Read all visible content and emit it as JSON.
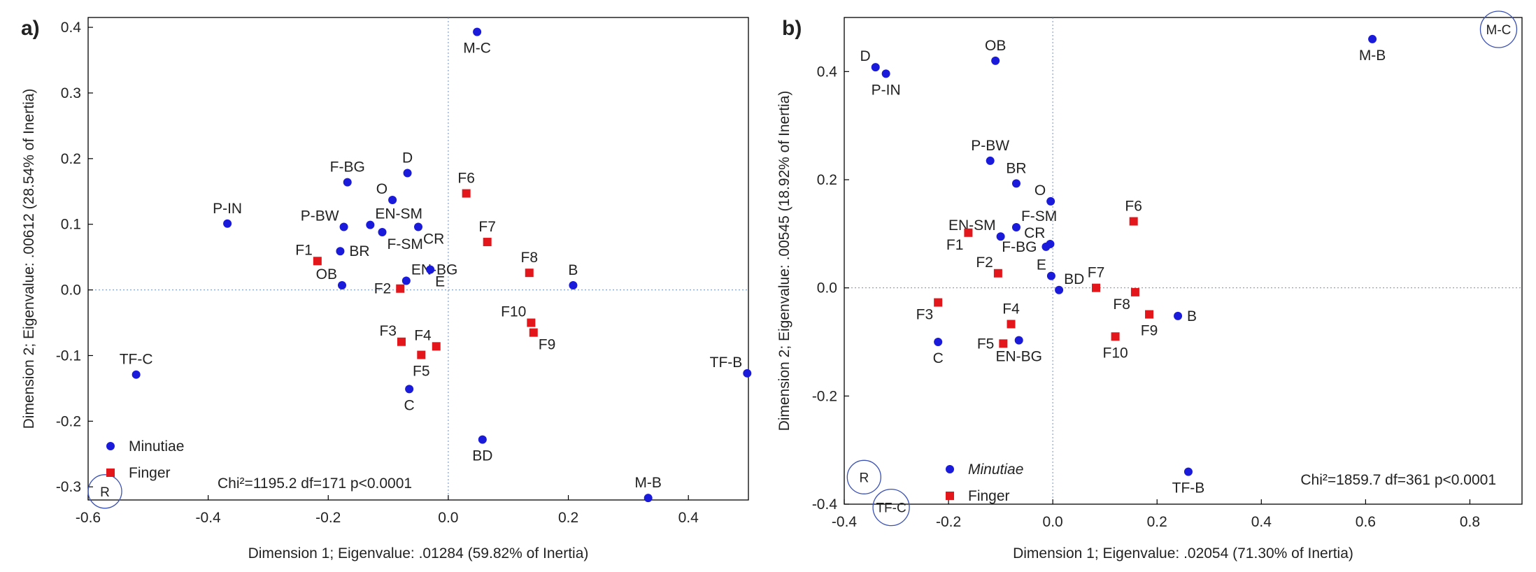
{
  "chart_data": [
    {
      "type": "scatter",
      "panel": "a)",
      "xlabel": "Dimension 1; Eigenvalue: .01284 (59.82% of Inertia)",
      "ylabel": "Dimension 2; Eigenvalue: .00612 (28.54% of Inertia)",
      "xlim": [
        -0.6,
        0.5
      ],
      "ylim": [
        -0.32,
        0.415
      ],
      "xticks": [
        -0.6,
        -0.4,
        -0.2,
        0.0,
        0.2,
        0.4
      ],
      "xtick_labels": [
        "-0.6",
        "-0.4",
        "-0.2",
        "0.0",
        "0.2",
        "0.4"
      ],
      "yticks": [
        -0.3,
        -0.2,
        -0.1,
        0.0,
        0.1,
        0.2,
        0.3,
        0.4
      ],
      "ytick_labels": [
        "-0.3",
        "-0.2",
        "-0.1",
        "0.0",
        "0.1",
        "0.2",
        "0.3",
        "0.4"
      ],
      "legend": [
        {
          "name": "Minutiae",
          "marker": "circle",
          "color": "#1a1adb",
          "italic": false
        },
        {
          "name": "Finger",
          "marker": "square",
          "color": "#e3161b",
          "italic": false
        }
      ],
      "stat_text": "Chi²=1195.2 df=171 p<0.0001",
      "annotations": [
        {
          "text": "R",
          "x": -0.572,
          "y": -0.307
        }
      ],
      "series": [
        {
          "name": "Minutiae",
          "points": [
            {
              "label": "M-C",
              "x": 0.048,
              "y": 0.393,
              "pos": "below"
            },
            {
              "label": "D",
              "x": -0.068,
              "y": 0.178,
              "pos": "above"
            },
            {
              "label": "F-BG",
              "x": -0.168,
              "y": 0.164,
              "pos": "above"
            },
            {
              "label": "O",
              "x": -0.093,
              "y": 0.137,
              "pos": "ul"
            },
            {
              "label": "P-IN",
              "x": -0.368,
              "y": 0.101,
              "pos": "above"
            },
            {
              "label": "P-BW",
              "x": -0.174,
              "y": 0.096,
              "pos": "ul"
            },
            {
              "label": "EN-SM",
              "x": -0.13,
              "y": 0.099,
              "pos": "ur"
            },
            {
              "label": "CR",
              "x": -0.05,
              "y": 0.096,
              "pos": "dr"
            },
            {
              "label": "F-SM",
              "x": -0.11,
              "y": 0.088,
              "pos": "dr"
            },
            {
              "label": "BR",
              "x": -0.18,
              "y": 0.059,
              "pos": "right"
            },
            {
              "label": "EN-BG",
              "x": -0.07,
              "y": 0.014,
              "pos": "ur"
            },
            {
              "label": "E",
              "x": -0.03,
              "y": 0.031,
              "pos": "dr"
            },
            {
              "label": "OB",
              "x": -0.177,
              "y": 0.007,
              "pos": "ul"
            },
            {
              "label": "B",
              "x": 0.208,
              "y": 0.007,
              "pos": "above"
            },
            {
              "label": "C",
              "x": -0.065,
              "y": -0.151,
              "pos": "below"
            },
            {
              "label": "TF-C",
              "x": -0.52,
              "y": -0.129,
              "pos": "above"
            },
            {
              "label": "TF-B",
              "x": 0.498,
              "y": -0.127,
              "pos": "ul"
            },
            {
              "label": "BD",
              "x": 0.057,
              "y": -0.228,
              "pos": "below"
            },
            {
              "label": "M-B",
              "x": 0.333,
              "y": -0.317,
              "pos": "above"
            }
          ]
        },
        {
          "name": "Finger",
          "points": [
            {
              "label": "F1",
              "x": -0.218,
              "y": 0.044,
              "pos": "ul"
            },
            {
              "label": "F2",
              "x": -0.08,
              "y": 0.002,
              "pos": "left"
            },
            {
              "label": "F3",
              "x": -0.078,
              "y": -0.079,
              "pos": "ul"
            },
            {
              "label": "F4",
              "x": -0.02,
              "y": -0.086,
              "pos": "ul"
            },
            {
              "label": "F5",
              "x": -0.045,
              "y": -0.099,
              "pos": "below"
            },
            {
              "label": "F6",
              "x": 0.03,
              "y": 0.147,
              "pos": "above"
            },
            {
              "label": "F7",
              "x": 0.065,
              "y": 0.073,
              "pos": "above"
            },
            {
              "label": "F8",
              "x": 0.135,
              "y": 0.026,
              "pos": "above"
            },
            {
              "label": "F9",
              "x": 0.142,
              "y": -0.065,
              "pos": "dr"
            },
            {
              "label": "F10",
              "x": 0.138,
              "y": -0.05,
              "pos": "ul"
            }
          ]
        }
      ]
    },
    {
      "type": "scatter",
      "panel": "b)",
      "xlabel": "Dimension 1; Eigenvalue: .02054 (71.30% of Inertia)",
      "ylabel": "Dimension 2; Eigenvalue: .00545 (18.92% of Inertia)",
      "xlim": [
        -0.4,
        0.9
      ],
      "ylim": [
        -0.4,
        0.5
      ],
      "xticks": [
        -0.4,
        -0.2,
        0.0,
        0.2,
        0.4,
        0.6,
        0.8
      ],
      "xtick_labels": [
        "-0.4",
        "-0.2",
        "0.0",
        "0.2",
        "0.4",
        "0.6",
        "0.8"
      ],
      "yticks": [
        -0.4,
        -0.2,
        0.0,
        0.2,
        0.4
      ],
      "ytick_labels": [
        "-0.4",
        "-0.2",
        "0.0",
        "0.2",
        "0.4"
      ],
      "legend": [
        {
          "name": "Minutiae",
          "marker": "circle",
          "color": "#1a1adb",
          "italic": true
        },
        {
          "name": "Finger",
          "marker": "square",
          "color": "#e3161b",
          "italic": false
        }
      ],
      "stat_text": "Chi²=1859.7 df=361 p<0.0001",
      "annotations": [
        {
          "text": "M-C",
          "x": 0.855,
          "y": 0.478
        },
        {
          "text": "R",
          "x": -0.362,
          "y": -0.35
        },
        {
          "text": "TF-C",
          "x": -0.31,
          "y": -0.406
        }
      ],
      "series": [
        {
          "name": "Minutiae",
          "points": [
            {
              "label": "D",
              "x": -0.34,
              "y": 0.408,
              "pos": "ul"
            },
            {
              "label": "P-IN",
              "x": -0.32,
              "y": 0.396,
              "pos": "below"
            },
            {
              "label": "OB",
              "x": -0.11,
              "y": 0.42,
              "pos": "above"
            },
            {
              "label": "M-B",
              "x": 0.613,
              "y": 0.46,
              "pos": "below"
            },
            {
              "label": "P-BW",
              "x": -0.12,
              "y": 0.235,
              "pos": "above"
            },
            {
              "label": "BR",
              "x": -0.07,
              "y": 0.193,
              "pos": "above"
            },
            {
              "label": "O",
              "x": -0.004,
              "y": 0.16,
              "pos": "ul"
            },
            {
              "label": "F-SM",
              "x": -0.07,
              "y": 0.112,
              "pos": "ur"
            },
            {
              "label": "CR",
              "x": -0.005,
              "y": 0.081,
              "pos": "ul"
            },
            {
              "label": "EN-SM",
              "x": -0.1,
              "y": 0.095,
              "pos": "ul"
            },
            {
              "label": "F-BG",
              "x": -0.013,
              "y": 0.076,
              "pos": "left"
            },
            {
              "label": "E",
              "x": -0.003,
              "y": 0.022,
              "pos": "ul"
            },
            {
              "label": "BD",
              "x": 0.012,
              "y": -0.004,
              "pos": "ur"
            },
            {
              "label": "C",
              "x": -0.22,
              "y": -0.1,
              "pos": "below"
            },
            {
              "label": "EN-BG",
              "x": -0.065,
              "y": -0.097,
              "pos": "below"
            },
            {
              "label": "B",
              "x": 0.24,
              "y": -0.052,
              "pos": "right"
            },
            {
              "label": "TF-B",
              "x": 0.26,
              "y": -0.34,
              "pos": "below"
            }
          ]
        },
        {
          "name": "Finger",
          "points": [
            {
              "label": "F1",
              "x": -0.162,
              "y": 0.102,
              "pos": "dl"
            },
            {
              "label": "F2",
              "x": -0.105,
              "y": 0.027,
              "pos": "ul"
            },
            {
              "label": "F3",
              "x": -0.22,
              "y": -0.027,
              "pos": "dl"
            },
            {
              "label": "F4",
              "x": -0.08,
              "y": -0.067,
              "pos": "above"
            },
            {
              "label": "F5",
              "x": -0.095,
              "y": -0.103,
              "pos": "left"
            },
            {
              "label": "F6",
              "x": 0.155,
              "y": 0.123,
              "pos": "above"
            },
            {
              "label": "F7",
              "x": 0.083,
              "y": 0.0,
              "pos": "above"
            },
            {
              "label": "F8",
              "x": 0.158,
              "y": -0.008,
              "pos": "dl"
            },
            {
              "label": "F9",
              "x": 0.185,
              "y": -0.049,
              "pos": "below"
            },
            {
              "label": "F10",
              "x": 0.12,
              "y": -0.09,
              "pos": "below"
            }
          ]
        }
      ]
    }
  ]
}
